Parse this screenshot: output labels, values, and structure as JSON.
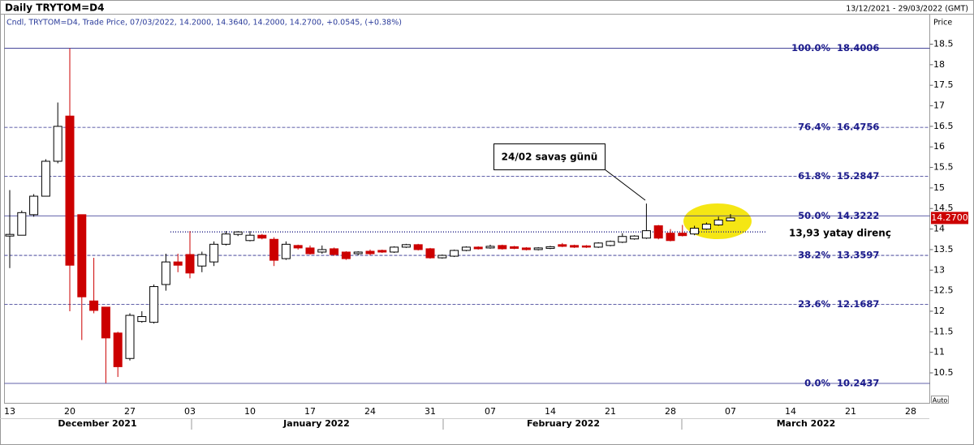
{
  "chart_data": {
    "type": "candlestick",
    "title": "Daily TRYTOM=D4",
    "date_range": "13/12/2021 - 29/03/2022 (GMT)",
    "subtitle": "Cndl, TRYTOM=D4, Trade Price, 07/03/2022, 14.2000, 14.3640, 14.2000, 14.2700, +0.0545, (+0.38%)",
    "y_axis_label": "Price",
    "scale_mode": "Auto",
    "categories": [
      "13",
      null,
      null,
      null,
      null,
      "20",
      null,
      null,
      null,
      null,
      "27",
      null,
      null,
      null,
      null,
      "03",
      null,
      null,
      null,
      null,
      "10",
      null,
      null,
      null,
      null,
      "17",
      null,
      null,
      null,
      null,
      "24",
      null,
      null,
      null,
      null,
      "31",
      null,
      null,
      null,
      null,
      "07",
      null,
      null,
      null,
      null,
      "14",
      null,
      null,
      null,
      null,
      "21",
      null,
      null,
      null,
      null,
      "28",
      null,
      null,
      null,
      null,
      "07",
      null,
      null,
      null,
      null,
      "14",
      null,
      null,
      null,
      null,
      "21",
      null,
      null,
      null,
      null,
      "28"
    ],
    "months": [
      "December 2021",
      "January 2022",
      "February 2022",
      "March 2022"
    ],
    "open": [
      13.83,
      13.85,
      14.35,
      14.8,
      15.65,
      16.75,
      14.35,
      12.25,
      12.1,
      11.47,
      10.85,
      11.75,
      11.73,
      12.65,
      13.2,
      13.38,
      13.1,
      13.2,
      13.63,
      13.87,
      13.72,
      13.85,
      13.75,
      13.28,
      13.6,
      13.54,
      13.44,
      13.52,
      13.44,
      13.4,
      13.46,
      13.48,
      13.44,
      13.56,
      13.62,
      13.52,
      13.3,
      13.34,
      13.48,
      13.56,
      13.54,
      13.6,
      13.57,
      13.54,
      13.5,
      13.53,
      13.62,
      13.6,
      13.59,
      13.56,
      13.6,
      13.68,
      13.76,
      13.78,
      14.08,
      13.9,
      13.9,
      13.88,
      14.0,
      14.1,
      14.2,
      null,
      null,
      null,
      null,
      null,
      null,
      null,
      null,
      null,
      null,
      null,
      null,
      null,
      null,
      null
    ],
    "high": [
      14.95,
      14.45,
      14.85,
      15.7,
      17.08,
      18.4,
      14.35,
      13.3,
      12.1,
      11.5,
      11.95,
      12.0,
      12.65,
      13.4,
      13.4,
      13.95,
      13.45,
      13.7,
      13.95,
      13.95,
      13.95,
      13.88,
      13.8,
      13.7,
      13.62,
      13.6,
      13.6,
      13.55,
      13.46,
      13.46,
      13.5,
      13.5,
      13.58,
      13.64,
      13.64,
      13.54,
      13.38,
      13.5,
      13.58,
      13.58,
      13.62,
      13.62,
      13.59,
      13.56,
      13.56,
      13.59,
      13.66,
      13.62,
      13.61,
      13.68,
      13.72,
      13.9,
      13.85,
      14.62,
      14.1,
      14.0,
      14.1,
      14.08,
      14.16,
      14.3,
      14.364,
      null,
      null,
      null,
      null,
      null,
      null,
      null,
      null,
      null,
      null,
      null,
      null,
      null,
      null,
      null
    ],
    "low": [
      13.05,
      13.85,
      14.3,
      14.8,
      15.6,
      12.0,
      11.3,
      11.95,
      10.25,
      10.4,
      10.8,
      11.72,
      11.7,
      12.5,
      12.95,
      12.8,
      12.95,
      13.1,
      13.6,
      13.83,
      13.7,
      13.75,
      13.1,
      13.25,
      13.5,
      13.38,
      13.4,
      13.35,
      13.25,
      13.36,
      13.36,
      13.42,
      13.42,
      13.54,
      13.48,
      13.28,
      13.28,
      13.32,
      13.46,
      13.5,
      13.52,
      13.5,
      13.51,
      13.48,
      13.48,
      13.51,
      13.56,
      13.54,
      13.54,
      13.54,
      13.58,
      13.66,
      13.74,
      13.76,
      13.75,
      13.7,
      13.82,
      13.85,
      13.98,
      14.08,
      14.2,
      null,
      null,
      null,
      null,
      null,
      null,
      null,
      null,
      null,
      null,
      null,
      null,
      null,
      null,
      null
    ],
    "close": [
      13.87,
      14.4,
      14.8,
      15.65,
      16.5,
      13.12,
      12.35,
      12.02,
      11.35,
      10.65,
      11.9,
      11.87,
      12.6,
      13.2,
      13.12,
      12.93,
      13.38,
      13.63,
      13.88,
      13.93,
      13.85,
      13.78,
      13.24,
      13.63,
      13.54,
      13.4,
      13.5,
      13.38,
      13.28,
      13.44,
      13.4,
      13.44,
      13.56,
      13.62,
      13.5,
      13.3,
      13.36,
      13.48,
      13.56,
      13.52,
      13.58,
      13.52,
      13.53,
      13.5,
      13.54,
      13.57,
      13.58,
      13.56,
      13.56,
      13.66,
      13.7,
      13.82,
      13.83,
      13.96,
      13.78,
      13.72,
      13.84,
      14.02,
      14.12,
      14.22,
      14.27,
      null,
      null,
      null,
      null,
      null,
      null,
      null,
      null,
      null,
      null,
      null,
      null,
      null,
      null,
      null
    ],
    "up_color": "#ffffff",
    "down_color": "#cc0000",
    "outline_color": "#000000",
    "ylim": [
      9.76,
      19.23
    ],
    "yticks": [
      10.5,
      11,
      11.5,
      12,
      12.5,
      13,
      13.5,
      14,
      14.5,
      15,
      15.5,
      16,
      16.5,
      17,
      17.5,
      18,
      18.5
    ],
    "fib_color": "#2b2b8c",
    "fib_levels": [
      {
        "label": "100.0%",
        "value": 18.4006,
        "dashed": false
      },
      {
        "label": "76.4%",
        "value": 16.4756,
        "dashed": true
      },
      {
        "label": "61.8%",
        "value": 15.2847,
        "dashed": true
      },
      {
        "label": "50.0%",
        "value": 14.3222,
        "dashed": false
      },
      {
        "label": "38.2%",
        "value": 13.3597,
        "dashed": true
      },
      {
        "label": "23.6%",
        "value": 12.1687,
        "dashed": true
      },
      {
        "label": "0.0%",
        "value": 10.2437,
        "dashed": false
      }
    ],
    "resistance": {
      "value": 13.93,
      "label": "13,93 yatay direnç"
    },
    "callout": "24/02 savaş günü",
    "last_price": {
      "value": 14.27,
      "label": "14.2700",
      "color": "#cc0000"
    }
  }
}
